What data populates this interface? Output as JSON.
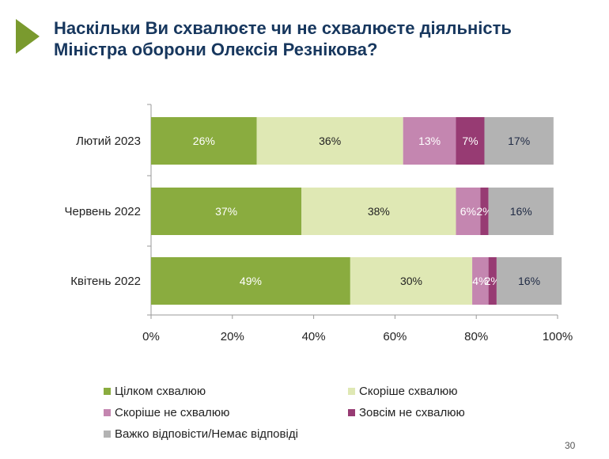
{
  "slide": {
    "title_line1": "Наскільки Ви схвалюєте чи не схвалюєте діяльність",
    "title_line2": "Міністра оборони Олексія Резнікова?",
    "page_number": "30",
    "accent_color": "#7a9a2e",
    "title_color": "#17375e"
  },
  "chart_data": {
    "type": "bar",
    "orientation": "horizontal",
    "stacked": true,
    "title": "",
    "xlabel": "",
    "ylabel": "",
    "xlim": [
      0,
      100
    ],
    "x_ticks": [
      "0%",
      "20%",
      "40%",
      "60%",
      "80%",
      "100%"
    ],
    "categories": [
      "Лютий 2023",
      "Червень 2022",
      "Квітень 2022"
    ],
    "legend_position": "bottom",
    "series": [
      {
        "name": "Цілком схвалюю",
        "color": "#8aac3f",
        "label_color": "#ffffff",
        "values": [
          26,
          37,
          49
        ]
      },
      {
        "name": "Скоріше схвалюю",
        "color": "#dfe8b4",
        "label_color": "#222222",
        "values": [
          36,
          38,
          30
        ]
      },
      {
        "name": "Скоріше не схвалюю",
        "color": "#c486b0",
        "label_color": "#ffffff",
        "values": [
          13,
          6,
          4
        ]
      },
      {
        "name": "Зовсім не схвалюю",
        "color": "#973b73",
        "label_color": "#ffffff",
        "values": [
          7,
          2,
          2
        ]
      },
      {
        "name": "Важко відповісти/Немає відповіді",
        "color": "#b3b3b3",
        "label_color": "#1f2a44",
        "values": [
          17,
          16,
          16
        ]
      }
    ]
  }
}
